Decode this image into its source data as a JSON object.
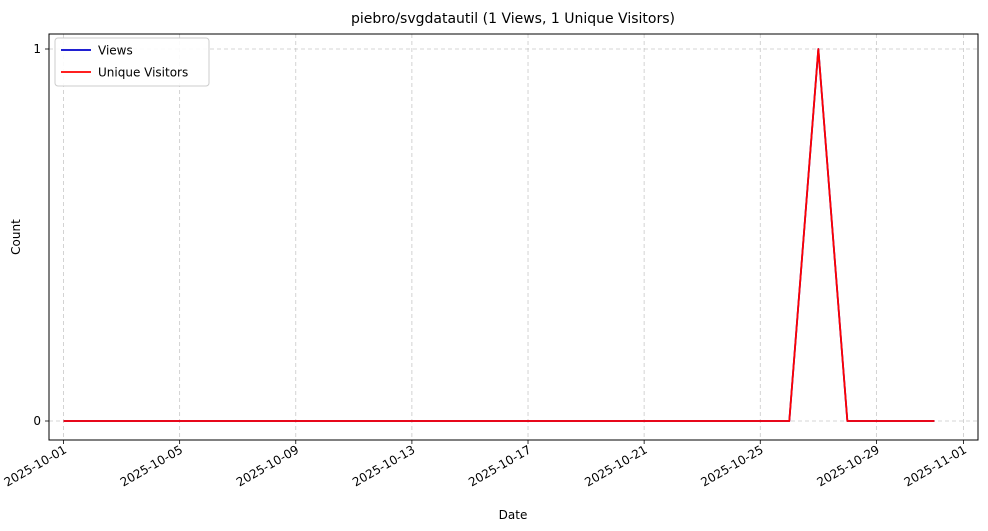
{
  "chart_data": {
    "type": "line",
    "title": "piebro/svgdatautil (1 Views, 1 Unique Visitors)",
    "xlabel": "Date",
    "ylabel": "Count",
    "x_start": "2025-10-01",
    "x": [
      "2025-10-01",
      "2025-10-02",
      "2025-10-03",
      "2025-10-04",
      "2025-10-05",
      "2025-10-06",
      "2025-10-07",
      "2025-10-08",
      "2025-10-09",
      "2025-10-10",
      "2025-10-11",
      "2025-10-12",
      "2025-10-13",
      "2025-10-14",
      "2025-10-15",
      "2025-10-16",
      "2025-10-17",
      "2025-10-18",
      "2025-10-19",
      "2025-10-20",
      "2025-10-21",
      "2025-10-22",
      "2025-10-23",
      "2025-10-24",
      "2025-10-25",
      "2025-10-26",
      "2025-10-27",
      "2025-10-28",
      "2025-10-29",
      "2025-10-30",
      "2025-10-31"
    ],
    "series": [
      {
        "name": "Views",
        "color": "#0000cc",
        "values": [
          0,
          0,
          0,
          0,
          0,
          0,
          0,
          0,
          0,
          0,
          0,
          0,
          0,
          0,
          0,
          0,
          0,
          0,
          0,
          0,
          0,
          0,
          0,
          0,
          0,
          0,
          1,
          0,
          0,
          0,
          0
        ]
      },
      {
        "name": "Unique Visitors",
        "color": "#ff0000",
        "values": [
          0,
          0,
          0,
          0,
          0,
          0,
          0,
          0,
          0,
          0,
          0,
          0,
          0,
          0,
          0,
          0,
          0,
          0,
          0,
          0,
          0,
          0,
          0,
          0,
          0,
          0,
          1,
          0,
          0,
          0,
          0
        ]
      }
    ],
    "x_ticks": [
      "2025-10-01",
      "2025-10-05",
      "2025-10-09",
      "2025-10-13",
      "2025-10-17",
      "2025-10-21",
      "2025-10-25",
      "2025-10-29",
      "2025-11-01"
    ],
    "y_ticks": [
      0,
      1
    ],
    "ylim": [
      0,
      1
    ],
    "xlim": [
      "2025-09-30",
      "2025-11-01"
    ],
    "grid": true,
    "legend_position": "top-left"
  }
}
